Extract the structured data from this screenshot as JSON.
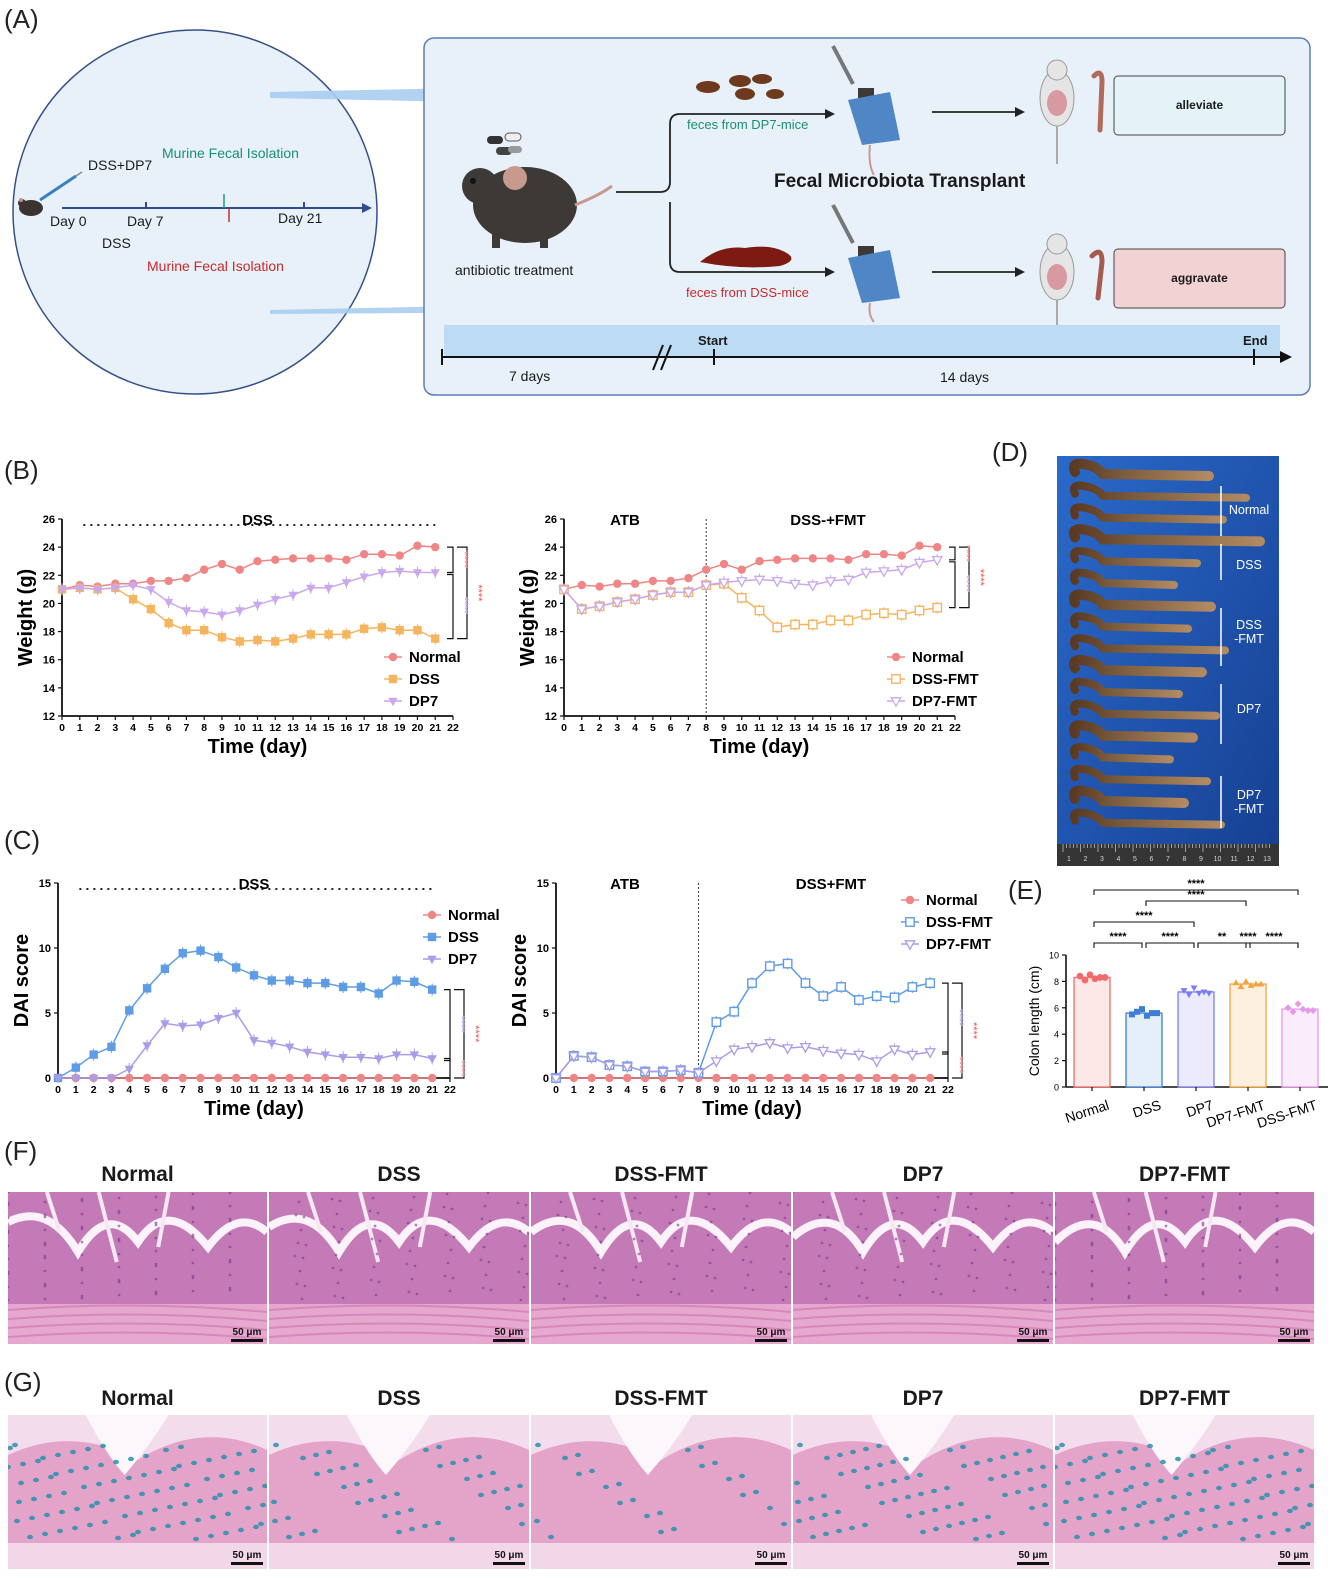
{
  "panels": {
    "A": "(A)",
    "B": "(B)",
    "C": "(C)",
    "D": "(D)",
    "E": "(E)",
    "F": "(F)",
    "G": "(G)"
  },
  "colors": {
    "normal": "#f08585",
    "dss": "#f5b55e",
    "dp7": "#c9a8ef",
    "dai_dss": "#5e9de6",
    "dai_dp7": "#a99ce8",
    "bg_box": "#e8f1fa",
    "timeline": "#2e4c8f",
    "arrow_blue": "#a9cdef",
    "blue_board": "#1c5bb5"
  },
  "schematic": {
    "left": {
      "dss_dp7": "DSS+DP7",
      "murine_top": "Murine Fecal Isolation",
      "day0": "Day 0",
      "day7": "Day 7",
      "day21": "Day 21",
      "dss": "DSS",
      "murine_bottom": "Murine Fecal Isolation"
    },
    "right": {
      "antibiotic": "antibiotic treatment",
      "feces_dp7": "feces from DP7-mice",
      "feces_dss": "feces from DSS-mice",
      "fmt_title": "Fecal Microbiota Transplant",
      "alleviate": "alleviate",
      "aggravate": "aggravate",
      "start": "Start",
      "end": "End",
      "seven_days": "7 days",
      "fourteen_days": "14 days"
    }
  },
  "chart_data": [
    {
      "id": "B-left",
      "type": "line",
      "title": "DSS",
      "xlabel": "Time (day)",
      "ylabel": "Weight (g)",
      "xlim": [
        0,
        22
      ],
      "ylim": [
        12,
        26
      ],
      "xticks": [
        0,
        1,
        2,
        3,
        4,
        5,
        6,
        7,
        8,
        9,
        10,
        11,
        12,
        13,
        14,
        15,
        16,
        17,
        18,
        19,
        20,
        21,
        22
      ],
      "yticks": [
        12,
        14,
        16,
        18,
        20,
        22,
        24,
        26
      ],
      "x": [
        0,
        1,
        2,
        3,
        4,
        5,
        6,
        7,
        8,
        9,
        10,
        11,
        12,
        13,
        14,
        15,
        16,
        17,
        18,
        19,
        20,
        21
      ],
      "series": [
        {
          "name": "Normal",
          "marker": "circle",
          "values": [
            21.0,
            21.3,
            21.2,
            21.4,
            21.4,
            21.6,
            21.6,
            21.8,
            22.4,
            22.8,
            22.4,
            23.0,
            23.1,
            23.2,
            23.2,
            23.2,
            23.1,
            23.5,
            23.5,
            23.4,
            24.1,
            24.0
          ]
        },
        {
          "name": "DSS",
          "marker": "square",
          "values": [
            21.0,
            21.1,
            21.0,
            21.1,
            20.3,
            19.6,
            18.6,
            18.1,
            18.1,
            17.6,
            17.3,
            17.4,
            17.3,
            17.5,
            17.8,
            17.8,
            17.8,
            18.2,
            18.3,
            18.1,
            18.1,
            17.5
          ]
        },
        {
          "name": "DP7",
          "marker": "triangle-down",
          "values": [
            21.0,
            21.1,
            21.0,
            21.1,
            21.3,
            21.0,
            20.1,
            19.5,
            19.4,
            19.2,
            19.5,
            19.9,
            20.3,
            20.6,
            21.1,
            21.1,
            21.5,
            21.9,
            22.2,
            22.3,
            22.2,
            22.2
          ]
        }
      ],
      "significance": [
        "****",
        "****",
        "****"
      ]
    },
    {
      "id": "B-right",
      "type": "line",
      "title": "DSS-+FMT",
      "subtitle": "ATB",
      "xlabel": "Time (day)",
      "ylabel": "Weight (g)",
      "xlim": [
        0,
        22
      ],
      "ylim": [
        12,
        26
      ],
      "xticks": [
        0,
        1,
        2,
        3,
        4,
        5,
        6,
        7,
        8,
        9,
        10,
        11,
        12,
        13,
        14,
        15,
        16,
        17,
        18,
        19,
        20,
        21,
        22
      ],
      "yticks": [
        12,
        14,
        16,
        18,
        20,
        22,
        24,
        26
      ],
      "x": [
        0,
        1,
        2,
        3,
        4,
        5,
        6,
        7,
        8,
        9,
        10,
        11,
        12,
        13,
        14,
        15,
        16,
        17,
        18,
        19,
        20,
        21
      ],
      "series": [
        {
          "name": "Normal",
          "marker": "circle",
          "values": [
            21.0,
            21.3,
            21.2,
            21.4,
            21.4,
            21.6,
            21.6,
            21.8,
            22.4,
            22.8,
            22.4,
            23.0,
            23.1,
            23.2,
            23.2,
            23.2,
            23.1,
            23.5,
            23.5,
            23.4,
            24.1,
            24.0
          ]
        },
        {
          "name": "DSS-FMT",
          "marker": "square-open",
          "values": [
            21.0,
            19.6,
            19.8,
            20.1,
            20.3,
            20.6,
            20.8,
            20.8,
            21.3,
            21.4,
            20.4,
            19.5,
            18.3,
            18.5,
            18.5,
            18.8,
            18.8,
            19.2,
            19.3,
            19.2,
            19.5,
            19.7
          ]
        },
        {
          "name": "DP7-FMT",
          "marker": "triangle-open",
          "values": [
            21.0,
            19.6,
            19.8,
            20.1,
            20.3,
            20.6,
            20.8,
            20.8,
            21.3,
            21.5,
            21.6,
            21.7,
            21.6,
            21.4,
            21.3,
            21.6,
            21.7,
            22.2,
            22.3,
            22.4,
            22.9,
            23.1
          ]
        }
      ],
      "significance": [
        "****",
        "****",
        "****"
      ]
    },
    {
      "id": "C-left",
      "type": "line",
      "title": "DSS",
      "xlabel": "Time (day)",
      "ylabel": "DAI score",
      "xlim": [
        0,
        22
      ],
      "ylim": [
        0,
        15
      ],
      "xticks": [
        0,
        1,
        2,
        3,
        4,
        5,
        6,
        7,
        8,
        9,
        10,
        11,
        12,
        13,
        14,
        15,
        16,
        17,
        18,
        19,
        20,
        21,
        22
      ],
      "yticks": [
        0,
        5,
        10,
        15
      ],
      "x": [
        0,
        1,
        2,
        3,
        4,
        5,
        6,
        7,
        8,
        9,
        10,
        11,
        12,
        13,
        14,
        15,
        16,
        17,
        18,
        19,
        20,
        21
      ],
      "series": [
        {
          "name": "Normal",
          "marker": "circle",
          "values": [
            0,
            0,
            0,
            0,
            0,
            0,
            0,
            0,
            0,
            0,
            0,
            0,
            0,
            0,
            0,
            0,
            0,
            0,
            0,
            0,
            0,
            0
          ]
        },
        {
          "name": "DSS",
          "marker": "square",
          "values": [
            0,
            0.8,
            1.8,
            2.4,
            5.2,
            6.9,
            8.4,
            9.6,
            9.8,
            9.3,
            8.5,
            7.9,
            7.5,
            7.5,
            7.3,
            7.3,
            7.0,
            7.0,
            6.5,
            7.5,
            7.4,
            6.8
          ]
        },
        {
          "name": "DP7",
          "marker": "triangle-down",
          "values": [
            0,
            0,
            0,
            0,
            0.7,
            2.5,
            4.2,
            4.0,
            4.1,
            4.6,
            5.0,
            2.9,
            2.7,
            2.4,
            2.0,
            1.8,
            1.6,
            1.6,
            1.5,
            1.8,
            1.8,
            1.5
          ]
        }
      ],
      "significance": [
        "****",
        "****",
        "****"
      ]
    },
    {
      "id": "C-right",
      "type": "line",
      "title": "DSS+FMT",
      "subtitle": "ATB",
      "xlabel": "Time (day)",
      "ylabel": "DAI score",
      "xlim": [
        0,
        22
      ],
      "ylim": [
        0,
        15
      ],
      "xticks": [
        0,
        1,
        2,
        3,
        4,
        5,
        6,
        7,
        8,
        9,
        10,
        11,
        12,
        13,
        14,
        15,
        16,
        17,
        18,
        19,
        20,
        21,
        22
      ],
      "yticks": [
        0,
        5,
        10,
        15
      ],
      "x": [
        0,
        1,
        2,
        3,
        4,
        5,
        6,
        7,
        8,
        9,
        10,
        11,
        12,
        13,
        14,
        15,
        16,
        17,
        18,
        19,
        20,
        21
      ],
      "series": [
        {
          "name": "Normal",
          "marker": "circle",
          "values": [
            0,
            0,
            0,
            0,
            0,
            0,
            0,
            0,
            0,
            0,
            0,
            0,
            0,
            0,
            0,
            0,
            0,
            0,
            0,
            0,
            0,
            0
          ]
        },
        {
          "name": "DSS-FMT",
          "marker": "square-open",
          "values": [
            0,
            1.7,
            1.6,
            1.0,
            0.9,
            0.5,
            0.5,
            0.6,
            0.4,
            4.3,
            5.1,
            7.3,
            8.6,
            8.8,
            7.3,
            6.3,
            7.0,
            6.0,
            6.3,
            6.2,
            7.0,
            7.3
          ]
        },
        {
          "name": "DP7-FMT",
          "marker": "triangle-open",
          "values": [
            0,
            1.7,
            1.6,
            1.0,
            0.9,
            0.5,
            0.5,
            0.6,
            0.4,
            1.3,
            2.2,
            2.4,
            2.7,
            2.3,
            2.4,
            2.1,
            1.9,
            1.8,
            1.3,
            2.2,
            1.8,
            2.0
          ]
        }
      ],
      "significance": [
        "****",
        "****",
        "****"
      ]
    },
    {
      "id": "E",
      "type": "bar",
      "ylabel": "Colon length (cm)",
      "categories": [
        "Normal",
        "DSS",
        "DP7",
        "DP7-FMT",
        "DSS-FMT"
      ],
      "values": [
        8.3,
        5.6,
        7.2,
        7.8,
        5.9
      ],
      "points": [
        [
          8.4,
          8.1,
          8.5,
          8.2,
          8.3,
          8.3
        ],
        [
          5.5,
          5.7,
          5.9,
          5.4,
          5.6,
          5.6
        ],
        [
          7.3,
          7.0,
          7.5,
          7.1,
          7.2,
          7.1
        ],
        [
          7.9,
          7.6,
          8.0,
          7.7,
          7.8,
          7.8
        ],
        [
          6.0,
          5.7,
          6.3,
          5.9,
          5.8,
          5.8
        ]
      ],
      "ylim": [
        0,
        10
      ],
      "yticks": [
        0,
        2,
        4,
        6,
        8,
        10
      ],
      "comparisons": [
        {
          "from": 0,
          "to": 4,
          "label": "****"
        },
        {
          "from": 1,
          "to": 3,
          "label": "****"
        },
        {
          "from": 0,
          "to": 2,
          "label": "****"
        },
        {
          "from": 2,
          "to": 4,
          "label": "****"
        },
        {
          "from": 0,
          "to": 1,
          "label": "****"
        },
        {
          "from": 1,
          "to": 2,
          "label": "****"
        },
        {
          "from": 2,
          "to": 3,
          "label": "**"
        },
        {
          "from": 3,
          "to": 4,
          "label": "****"
        }
      ]
    }
  ],
  "panel_d": {
    "labels": [
      "Normal",
      "DSS",
      "DSS\n-FMT",
      "DP7",
      "DP7\n-FMT"
    ],
    "ruler_numbers": [
      "1",
      "2",
      "3",
      "4",
      "5",
      "6",
      "7",
      "8",
      "9",
      "10",
      "11",
      "12",
      "13"
    ]
  },
  "histology": {
    "titles": [
      "Normal",
      "DSS",
      "DSS-FMT",
      "DP7",
      "DP7-FMT"
    ],
    "scale": "50 μm"
  }
}
